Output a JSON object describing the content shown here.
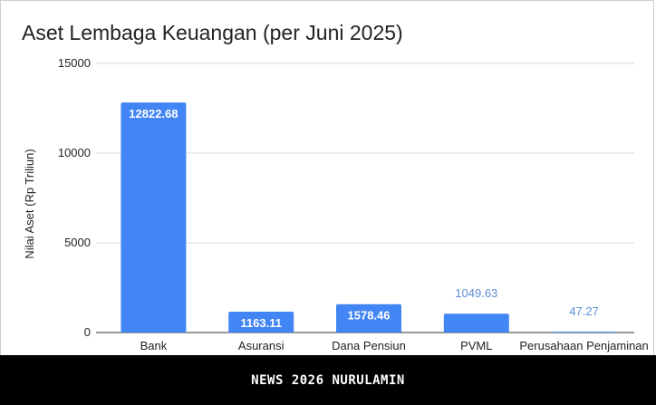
{
  "chart_data": {
    "type": "bar",
    "title": "Aset Lembaga Keuangan (per Juni 2025)",
    "xlabel": "",
    "ylabel": "Nilai Aset (Rp Triliun)",
    "categories": [
      "Bank",
      "Asuransi",
      "Dana Pensiun",
      "PVML",
      "Perusahaan Penjaminan"
    ],
    "values": [
      12822.68,
      1163.11,
      1578.46,
      1049.63,
      47.27
    ],
    "data_labels": [
      "12822.68",
      "1163.11",
      "1578.46",
      "1049.63",
      "47.27"
    ],
    "y_ticks": [
      0,
      5000,
      10000,
      15000
    ],
    "y_tick_labels": [
      "0",
      "5000",
      "10000",
      "15000"
    ],
    "ylim": [
      0,
      15000
    ],
    "grid": true,
    "legend": "none",
    "bar_color": "#4285f4",
    "outside_label_color": "#5b8ed6"
  },
  "footer": {
    "text": "NEWS 2026 NURULAMIN"
  }
}
